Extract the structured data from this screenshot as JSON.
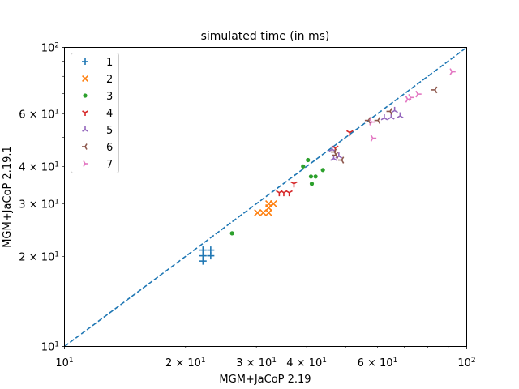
{
  "chart_data": {
    "type": "scatter",
    "title": "simulated time (in ms)",
    "xlabel": "MGM+JaCoP 2.19",
    "ylabel": "MGM+JaCoP 2.19.1",
    "xscale": "log",
    "yscale": "log",
    "xlim": [
      10,
      100
    ],
    "ylim": [
      10,
      100
    ],
    "grid": false,
    "legend_position": "top-left",
    "x_ticks": [
      {
        "value": 10,
        "base": "10",
        "exp": "1",
        "mant": ""
      },
      {
        "value": 20,
        "base": "10",
        "exp": "1",
        "mant": "2 × "
      },
      {
        "value": 30,
        "base": "10",
        "exp": "1",
        "mant": "3 × "
      },
      {
        "value": 40,
        "base": "10",
        "exp": "1",
        "mant": "4 × "
      },
      {
        "value": 60,
        "base": "10",
        "exp": "1",
        "mant": "6 × "
      },
      {
        "value": 100,
        "base": "10",
        "exp": "2",
        "mant": ""
      }
    ],
    "y_ticks": [
      {
        "value": 10,
        "base": "10",
        "exp": "1",
        "mant": ""
      },
      {
        "value": 20,
        "base": "10",
        "exp": "1",
        "mant": "2 × "
      },
      {
        "value": 30,
        "base": "10",
        "exp": "1",
        "mant": "3 × "
      },
      {
        "value": 40,
        "base": "10",
        "exp": "1",
        "mant": "4 × "
      },
      {
        "value": 60,
        "base": "10",
        "exp": "1",
        "mant": "6 × "
      },
      {
        "value": 100,
        "base": "10",
        "exp": "2",
        "mant": ""
      }
    ],
    "reference_line": {
      "style": "dashed",
      "color": "#1f77b4",
      "from": [
        10,
        10
      ],
      "to": [
        100,
        100
      ]
    },
    "series": [
      {
        "name": "1",
        "marker": "plus",
        "color": "#1f77b4",
        "points": [
          [
            22.1,
            21.0
          ],
          [
            22.1,
            20.1
          ],
          [
            22.1,
            19.3
          ],
          [
            23.1,
            21.0
          ],
          [
            23.1,
            20.1
          ]
        ]
      },
      {
        "name": "2",
        "marker": "x",
        "color": "#ff7f0e",
        "points": [
          [
            30.2,
            28.0
          ],
          [
            31.2,
            28.0
          ],
          [
            32.2,
            28.0
          ],
          [
            32.2,
            29.1
          ],
          [
            32.2,
            30.0
          ],
          [
            33.1,
            30.0
          ]
        ]
      },
      {
        "name": "3",
        "marker": "point",
        "color": "#2ca02c",
        "points": [
          [
            26.1,
            23.9
          ],
          [
            39.2,
            40.0
          ],
          [
            40.3,
            42.0
          ],
          [
            41.0,
            37.0
          ],
          [
            42.1,
            37.0
          ],
          [
            41.2,
            35.0
          ],
          [
            43.9,
            38.9
          ]
        ]
      },
      {
        "name": "4",
        "marker": "tri_down",
        "color": "#d62728",
        "points": [
          [
            34.2,
            32.7
          ],
          [
            35.1,
            32.7
          ],
          [
            36.2,
            32.7
          ],
          [
            37.2,
            35.0
          ],
          [
            47.1,
            46.1
          ],
          [
            51.2,
            51.9
          ]
        ]
      },
      {
        "name": "5",
        "marker": "tri_up",
        "color": "#9467bd",
        "points": [
          [
            46.3,
            45.6
          ],
          [
            46.7,
            42.5
          ],
          [
            48.1,
            43.3
          ],
          [
            62.4,
            58.1
          ],
          [
            64.9,
            58.4
          ],
          [
            66.2,
            61.5
          ],
          [
            68.3,
            59.0
          ]
        ]
      },
      {
        "name": "6",
        "marker": "tri_left",
        "color": "#8c564b",
        "points": [
          [
            46.9,
            44.7
          ],
          [
            47.3,
            43.6
          ],
          [
            48.9,
            42.0
          ],
          [
            57.0,
            57.0
          ],
          [
            60.2,
            57.0
          ],
          [
            64.5,
            61.1
          ],
          [
            83.4,
            72.1
          ]
        ]
      },
      {
        "name": "7",
        "marker": "tri_right",
        "color": "#e377c2",
        "points": [
          [
            58.0,
            56.3
          ],
          [
            58.4,
            49.7
          ],
          [
            71.3,
            67.1
          ],
          [
            72.5,
            68.0
          ],
          [
            75.6,
            69.8
          ],
          [
            91.9,
            82.9
          ]
        ]
      }
    ]
  }
}
